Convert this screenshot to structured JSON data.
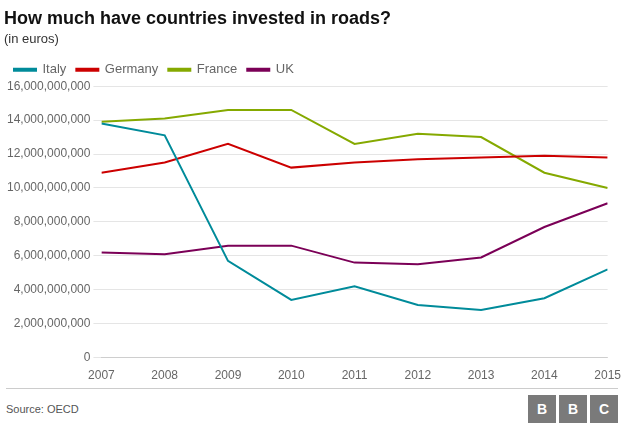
{
  "chart_data": {
    "type": "line",
    "title": "How much have countries invested in roads?",
    "subtitle": "(in euros)",
    "annotations": [
      "Source: OECD",
      "B",
      "B",
      "C"
    ],
    "x": [
      2007,
      2008,
      2009,
      2010,
      2011,
      2012,
      2013,
      2014,
      2015
    ],
    "series": [
      {
        "name": "Italy",
        "color": "#008B9A",
        "values": [
          13800000000,
          13100000000,
          5700000000,
          3400000000,
          4200000000,
          3100000000,
          2800000000,
          3500000000,
          5200000000
        ]
      },
      {
        "name": "Germany",
        "color": "#CC0000",
        "values": [
          10900000000,
          11500000000,
          12600000000,
          11200000000,
          11500000000,
          11700000000,
          11800000000,
          11900000000,
          11800000000
        ]
      },
      {
        "name": "France",
        "color": "#85A900",
        "values": [
          13900000000,
          14100000000,
          14600000000,
          14600000000,
          12600000000,
          13200000000,
          13000000000,
          10900000000,
          10000000000
        ]
      },
      {
        "name": "UK",
        "color": "#7B0057",
        "values": [
          6200000000,
          6100000000,
          6600000000,
          6600000000,
          5600000000,
          5500000000,
          5900000000,
          7700000000,
          9100000000
        ]
      }
    ],
    "xlim": [
      2007,
      2015
    ],
    "xticks": [
      2007,
      2008,
      2009,
      2010,
      2011,
      2012,
      2013,
      2014,
      2015
    ],
    "ylim": [
      0,
      16000000000
    ],
    "yticks": [
      0,
      {
        "value": 2000000000,
        "label": "2,000,000,000"
      },
      {
        "value": 4000000000,
        "label": "4,000,000,000"
      },
      {
        "value": 6000000000,
        "label": "6,000,000,000"
      },
      {
        "value": 8000000000,
        "label": "8,000,000,000"
      },
      {
        "value": 10000000000,
        "label": "10,000,000,000"
      },
      {
        "value": 12000000000,
        "label": "12,000,000,000"
      },
      {
        "value": 14000000000,
        "label": "14,000,000,000"
      },
      {
        "value": 16000000000,
        "label": "16,000,000,000"
      }
    ],
    "grid": true,
    "legend": "upper left"
  }
}
